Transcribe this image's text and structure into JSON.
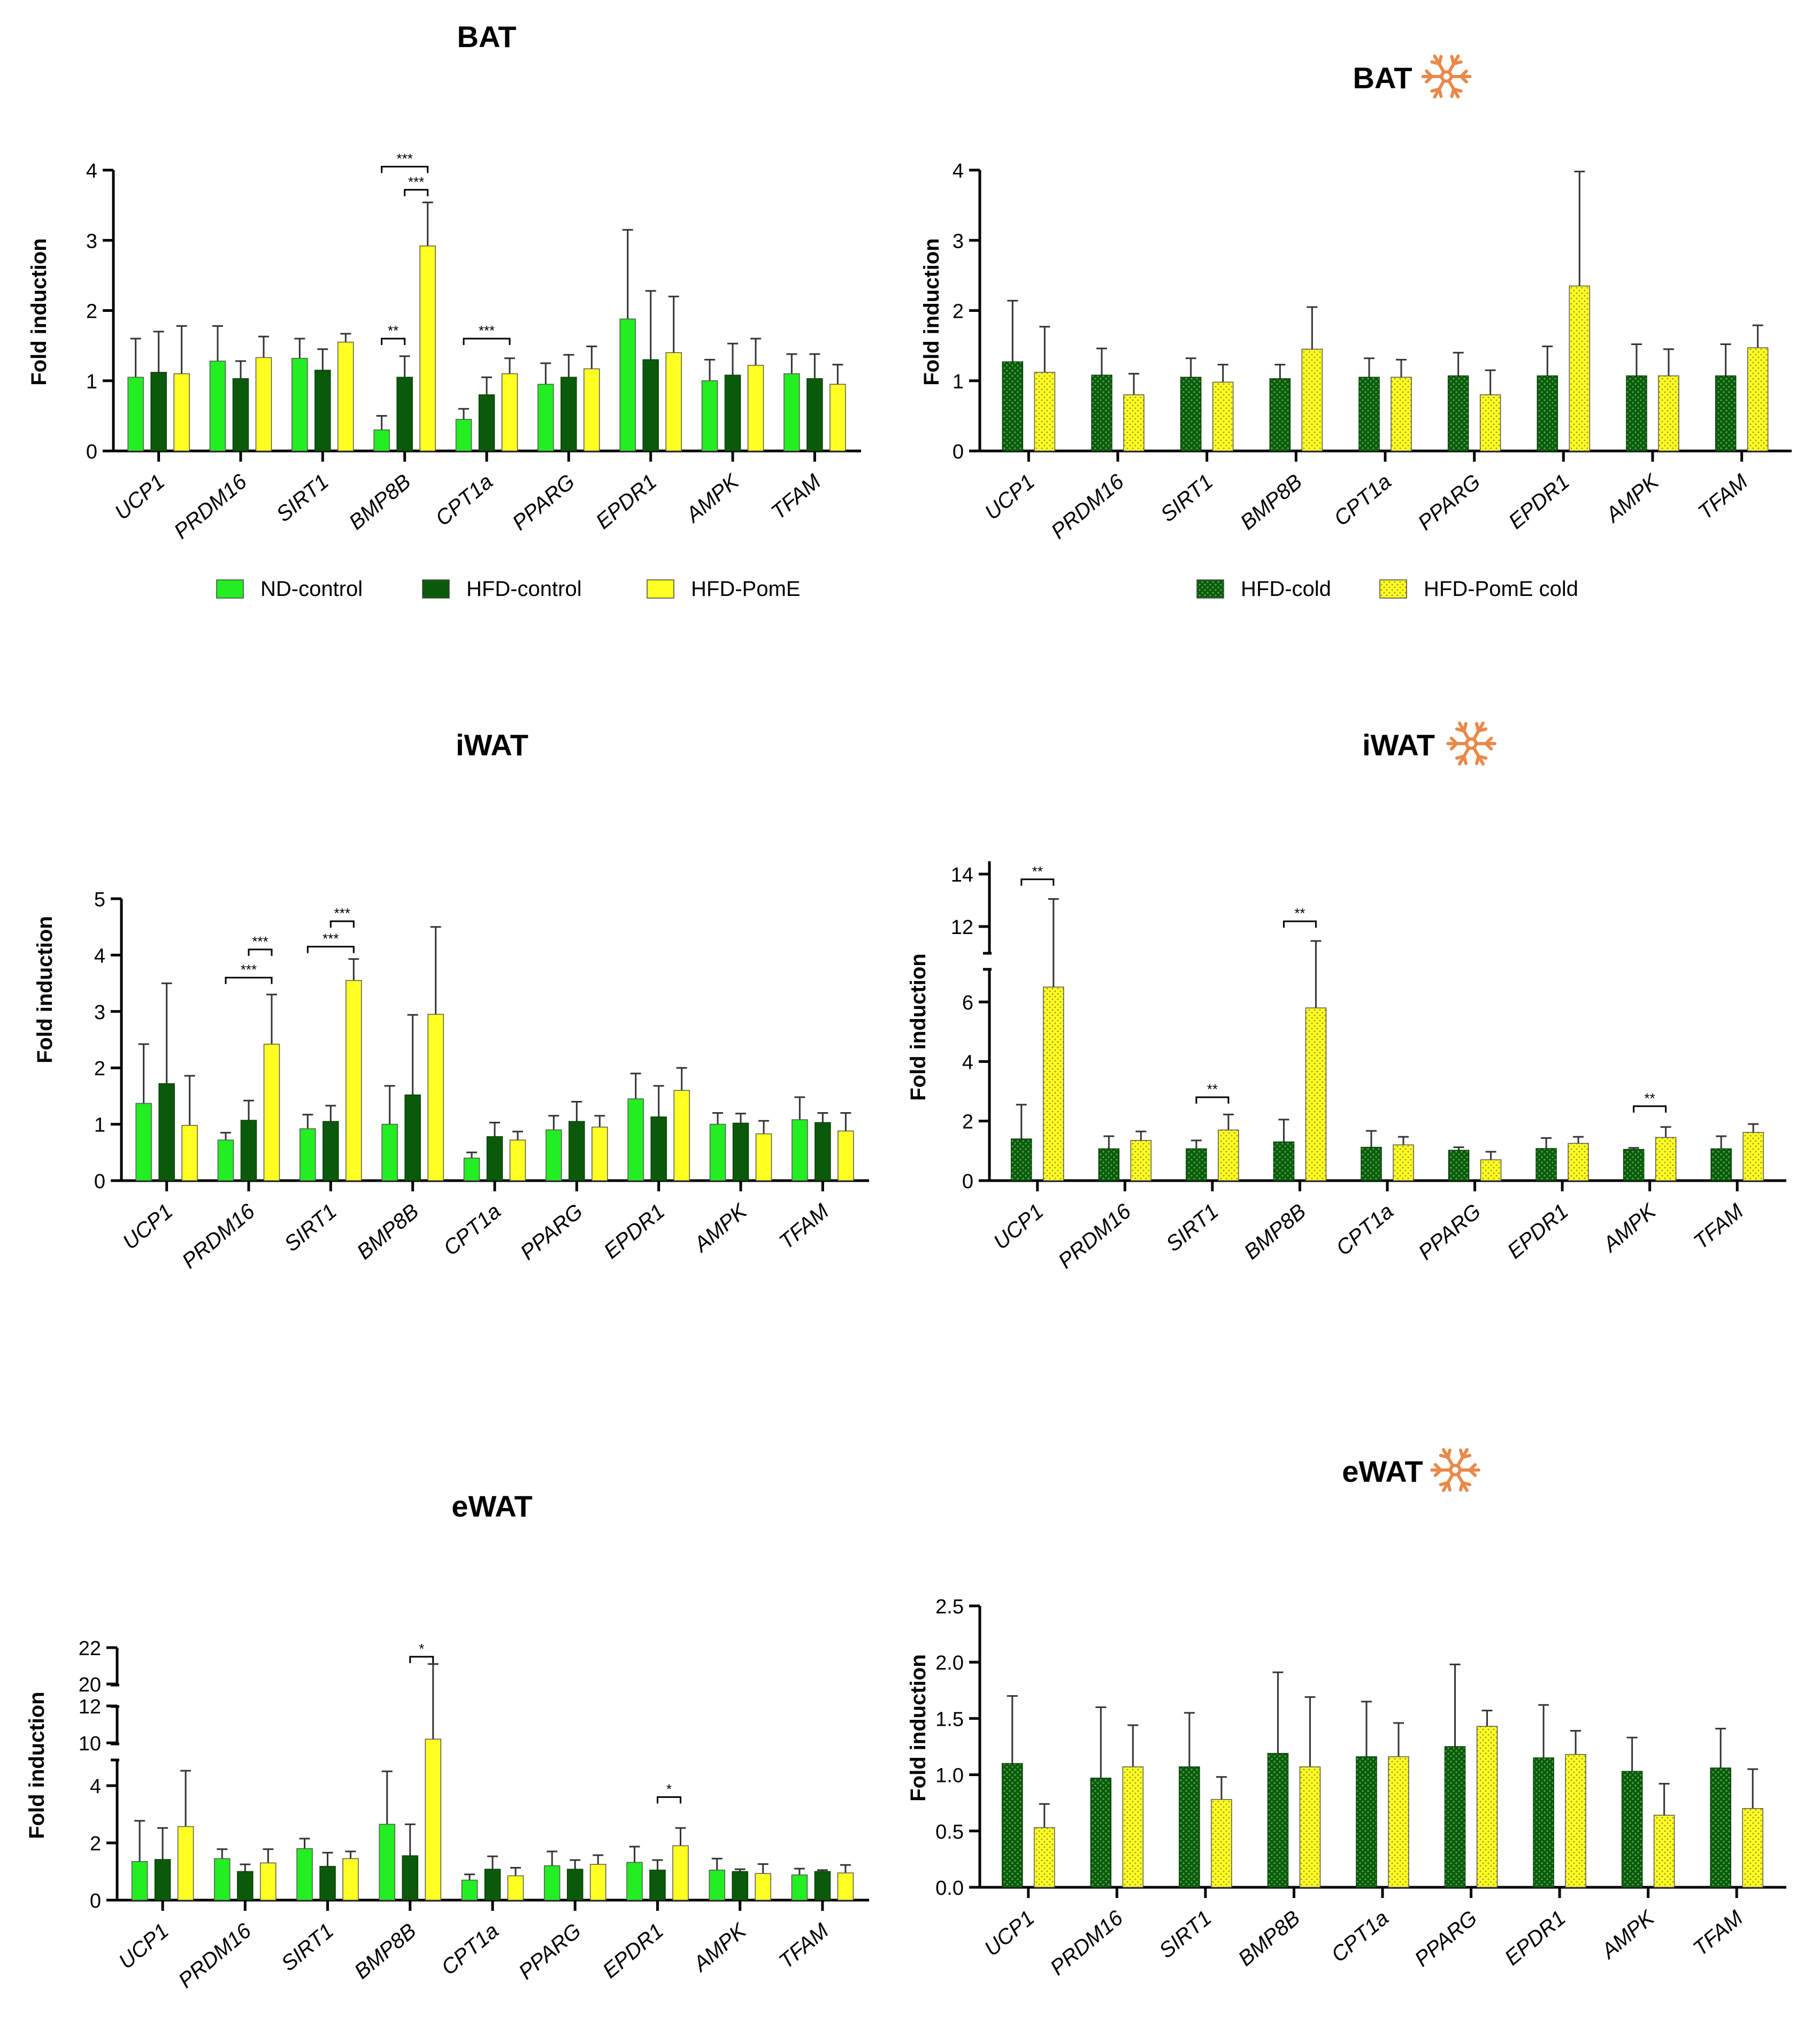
{
  "colors": {
    "nd_control": "#22ee22",
    "hfd_control": "#0b5a0b",
    "hfd_pome": "#ffff22",
    "snowflake": "#e8894a"
  },
  "genes": [
    "UCP1",
    "PRDM16",
    "SIRT1",
    "BMP8B",
    "CPT1a",
    "PPARG",
    "EPDR1",
    "AMPK",
    "TFAM"
  ],
  "legends": {
    "left": [
      {
        "name": "ND-control",
        "key": "nd"
      },
      {
        "name": "HFD-control",
        "key": "hfd"
      },
      {
        "name": "HFD-PomE",
        "key": "pome"
      }
    ],
    "right": [
      {
        "name": "HFD-cold",
        "key": "hfdcold"
      },
      {
        "name": "HFD-PomE cold",
        "key": "pomecold"
      }
    ]
  },
  "chart_data": [
    {
      "id": "bat",
      "type": "bar",
      "title": "BAT",
      "cold_icon": false,
      "ylabel": "Fold induction",
      "ylim": [
        0,
        4
      ],
      "yticks": [
        "0",
        "1",
        "2",
        "3",
        "4"
      ],
      "categories": [
        "UCP1",
        "PRDM16",
        "SIRT1",
        "BMP8B",
        "CPT1a",
        "PPARG",
        "EPDR1",
        "AMPK",
        "TFAM"
      ],
      "series": [
        {
          "name": "ND-control",
          "values": [
            1.05,
            1.28,
            1.32,
            0.3,
            0.45,
            0.95,
            1.88,
            1.0,
            1.1
          ],
          "errors": [
            0.55,
            0.5,
            0.28,
            0.2,
            0.15,
            0.3,
            1.27,
            0.3,
            0.28
          ]
        },
        {
          "name": "HFD-control",
          "values": [
            1.12,
            1.03,
            1.15,
            1.05,
            0.8,
            1.05,
            1.3,
            1.08,
            1.03
          ],
          "errors": [
            0.58,
            0.25,
            0.3,
            0.3,
            0.25,
            0.32,
            0.98,
            0.45,
            0.35
          ]
        },
        {
          "name": "HFD-PomE",
          "values": [
            1.1,
            1.33,
            1.55,
            2.92,
            1.1,
            1.17,
            1.4,
            1.22,
            0.95
          ],
          "errors": [
            0.68,
            0.3,
            0.12,
            0.62,
            0.22,
            0.32,
            0.8,
            0.38,
            0.28
          ]
        }
      ],
      "significance": [
        {
          "label": "***",
          "cat": 3,
          "from": 0,
          "to": 2,
          "y": 4.05
        },
        {
          "label": "***",
          "cat": 3,
          "from": 1,
          "to": 2,
          "y": 3.72
        },
        {
          "label": "**",
          "cat": 3,
          "from": 0,
          "to": 1,
          "y": 1.6
        },
        {
          "label": "***",
          "cat": 4,
          "from": 0,
          "to": 2,
          "y": 1.6
        }
      ]
    },
    {
      "id": "bat-cold",
      "type": "bar",
      "title": "BAT",
      "cold_icon": true,
      "ylabel": "Fold induction",
      "ylim": [
        0,
        4
      ],
      "yticks": [
        "0",
        "1",
        "2",
        "3",
        "4"
      ],
      "categories": [
        "UCP1",
        "PRDM16",
        "SIRT1",
        "BMP8B",
        "CPT1a",
        "PPARG",
        "EPDR1",
        "AMPK",
        "TFAM"
      ],
      "series": [
        {
          "name": "HFD-cold",
          "values": [
            1.27,
            1.08,
            1.05,
            1.03,
            1.05,
            1.07,
            1.07,
            1.07,
            1.07
          ],
          "errors": [
            0.87,
            0.38,
            0.27,
            0.2,
            0.27,
            0.33,
            0.42,
            0.45,
            0.45
          ]
        },
        {
          "name": "HFD-PomE cold",
          "values": [
            1.12,
            0.8,
            0.98,
            1.45,
            1.05,
            0.8,
            2.35,
            1.07,
            1.47
          ],
          "errors": [
            0.65,
            0.3,
            0.25,
            0.6,
            0.25,
            0.35,
            1.63,
            0.38,
            0.32
          ]
        }
      ],
      "significance": []
    },
    {
      "id": "iwat",
      "type": "bar",
      "title": "iWAT",
      "cold_icon": false,
      "ylabel": "Fold induction",
      "ylim": [
        0,
        5
      ],
      "yticks": [
        "0",
        "1",
        "2",
        "3",
        "4",
        "5"
      ],
      "categories": [
        "UCP1",
        "PRDM16",
        "SIRT1",
        "BMP8B",
        "CPT1a",
        "PPARG",
        "EPDR1",
        "AMPK",
        "TFAM"
      ],
      "series": [
        {
          "name": "ND-control",
          "values": [
            1.37,
            0.72,
            0.92,
            1.0,
            0.4,
            0.9,
            1.45,
            1.0,
            1.08
          ],
          "errors": [
            1.05,
            0.13,
            0.25,
            0.68,
            0.1,
            0.25,
            0.45,
            0.2,
            0.4
          ]
        },
        {
          "name": "HFD-control",
          "values": [
            1.72,
            1.07,
            1.05,
            1.52,
            0.78,
            1.05,
            1.13,
            1.02,
            1.03
          ],
          "errors": [
            1.78,
            0.35,
            0.28,
            1.42,
            0.25,
            0.35,
            0.55,
            0.17,
            0.17
          ]
        },
        {
          "name": "HFD-PomE",
          "values": [
            0.98,
            2.42,
            3.55,
            2.95,
            0.72,
            0.95,
            1.6,
            0.83,
            0.88
          ],
          "errors": [
            0.88,
            0.88,
            0.38,
            1.55,
            0.15,
            0.2,
            0.4,
            0.23,
            0.32
          ]
        }
      ],
      "significance": [
        {
          "label": "***",
          "cat": 1,
          "from": 1,
          "to": 2,
          "y": 4.1
        },
        {
          "label": "***",
          "cat": 1,
          "from": 0,
          "to": 2,
          "y": 3.6
        },
        {
          "label": "***",
          "cat": 2,
          "from": 1,
          "to": 2,
          "y": 4.6
        },
        {
          "label": "***",
          "cat": 2,
          "from": 0,
          "to": 2,
          "y": 4.15
        }
      ]
    },
    {
      "id": "iwat-cold",
      "type": "bar",
      "title": "iWAT",
      "cold_icon": true,
      "ylabel": "Fold induction",
      "ylim": [
        0,
        14
      ],
      "ybreak": [
        7,
        11
      ],
      "yticks": [
        "0",
        "2",
        "4",
        "6",
        "12",
        "14"
      ],
      "categories": [
        "UCP1",
        "PRDM16",
        "SIRT1",
        "BMP8B",
        "CPT1a",
        "PPARG",
        "EPDR1",
        "AMPK",
        "TFAM"
      ],
      "series": [
        {
          "name": "HFD-cold",
          "values": [
            1.4,
            1.07,
            1.07,
            1.3,
            1.12,
            1.02,
            1.08,
            1.05,
            1.07
          ],
          "errors": [
            1.15,
            0.42,
            0.28,
            0.75,
            0.55,
            0.1,
            0.35,
            0.05,
            0.42
          ]
        },
        {
          "name": "HFD-PomE cold",
          "values": [
            6.5,
            1.35,
            1.7,
            5.8,
            1.2,
            0.7,
            1.25,
            1.45,
            1.62
          ],
          "errors": [
            6.55,
            0.3,
            0.52,
            5.65,
            0.27,
            0.27,
            0.22,
            0.35,
            0.28
          ]
        }
      ],
      "significance": [
        {
          "label": "**",
          "cat": 0,
          "from": 0,
          "to": 1,
          "y": 13.8
        },
        {
          "label": "**",
          "cat": 2,
          "from": 0,
          "to": 1,
          "y": 2.8
        },
        {
          "label": "**",
          "cat": 3,
          "from": 0,
          "to": 1,
          "y": 12.2
        },
        {
          "label": "**",
          "cat": 7,
          "from": 0,
          "to": 1,
          "y": 2.5
        }
      ]
    },
    {
      "id": "ewat",
      "type": "bar",
      "title": "eWAT",
      "cold_icon": false,
      "ylabel": "Fold induction",
      "ylim": [
        0,
        22
      ],
      "yticks": [
        "0",
        "2",
        "4",
        "10",
        "12",
        "20",
        "22"
      ],
      "categories": [
        "UCP1",
        "PRDM16",
        "SIRT1",
        "BMP8B",
        "CPT1a",
        "PPARG",
        "EPDR1",
        "AMPK",
        "TFAM"
      ],
      "series": [
        {
          "name": "ND-control",
          "values": [
            1.35,
            1.45,
            1.8,
            2.65,
            0.7,
            1.2,
            1.32,
            1.05,
            0.88
          ],
          "errors": [
            1.42,
            0.33,
            0.35,
            1.85,
            0.2,
            0.5,
            0.55,
            0.4,
            0.22
          ]
        },
        {
          "name": "HFD-control",
          "values": [
            1.42,
            1.0,
            1.18,
            1.55,
            1.08,
            1.08,
            1.05,
            1.0,
            1.0
          ],
          "errors": [
            1.1,
            0.25,
            0.48,
            1.1,
            0.45,
            0.32,
            0.35,
            0.08,
            0.05
          ]
        },
        {
          "name": "HFD-PomE",
          "values": [
            2.57,
            1.3,
            1.45,
            10.2,
            0.85,
            1.25,
            1.9,
            0.93,
            0.95
          ],
          "errors": [
            1.95,
            0.48,
            0.25,
            10.9,
            0.28,
            0.32,
            0.62,
            0.33,
            0.28
          ]
        }
      ],
      "significance": [
        {
          "label": "*",
          "cat": 3,
          "from": 1,
          "to": 2,
          "y": 21.5
        },
        {
          "label": "*",
          "cat": 6,
          "from": 1,
          "to": 2,
          "y": 3.6
        }
      ]
    },
    {
      "id": "ewat-cold",
      "type": "bar",
      "title": "eWAT",
      "cold_icon": true,
      "ylabel": "Fold induction",
      "ylim": [
        0,
        2.5
      ],
      "yticks": [
        "0.0",
        "0.5",
        "1.0",
        "1.5",
        "2.0",
        "2.5"
      ],
      "categories": [
        "UCP1",
        "PRDM16",
        "SIRT1",
        "BMP8B",
        "CPT1a",
        "PPARG",
        "EPDR1",
        "AMPK",
        "TFAM"
      ],
      "series": [
        {
          "name": "HFD-cold",
          "values": [
            1.1,
            0.97,
            1.07,
            1.19,
            1.16,
            1.25,
            1.15,
            1.03,
            1.06
          ],
          "errors": [
            0.6,
            0.63,
            0.48,
            0.72,
            0.49,
            0.73,
            0.47,
            0.3,
            0.35
          ]
        },
        {
          "name": "HFD-PomE cold",
          "values": [
            0.53,
            1.07,
            0.78,
            1.07,
            1.16,
            1.43,
            1.18,
            0.64,
            0.7
          ],
          "errors": [
            0.21,
            0.37,
            0.2,
            0.62,
            0.3,
            0.14,
            0.21,
            0.28,
            0.35
          ]
        }
      ],
      "significance": []
    }
  ]
}
